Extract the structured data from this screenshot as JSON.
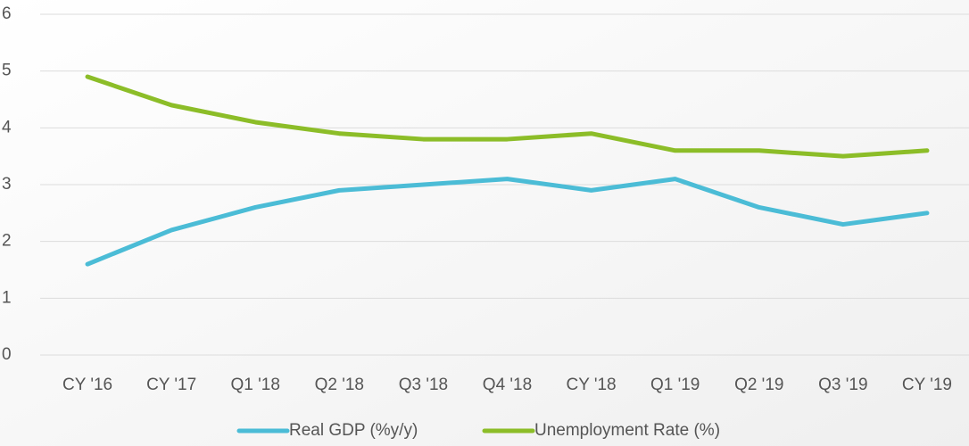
{
  "chart_data": {
    "type": "line",
    "categories": [
      "CY '16",
      "CY '17",
      "Q1 '18",
      "Q2 '18",
      "Q3 '18",
      "Q4 '18",
      "CY '18",
      "Q1 '19",
      "Q2 '19",
      "Q3 '19",
      "CY '19"
    ],
    "series": [
      {
        "name": "Real GDP (%y/y)",
        "color": "#4bbcd6",
        "values": [
          1.6,
          2.2,
          2.6,
          2.9,
          3.0,
          3.1,
          2.9,
          3.1,
          2.6,
          2.3,
          2.5
        ]
      },
      {
        "name": "Unemployment Rate (%)",
        "color": "#8cbd28",
        "values": [
          4.9,
          4.4,
          4.1,
          3.9,
          3.8,
          3.8,
          3.9,
          3.6,
          3.6,
          3.5,
          3.6
        ]
      }
    ],
    "ylim": [
      0,
      6
    ],
    "yticks": [
      0,
      1,
      2,
      3,
      4,
      5,
      6
    ],
    "grid": true,
    "legend": "bottom"
  }
}
